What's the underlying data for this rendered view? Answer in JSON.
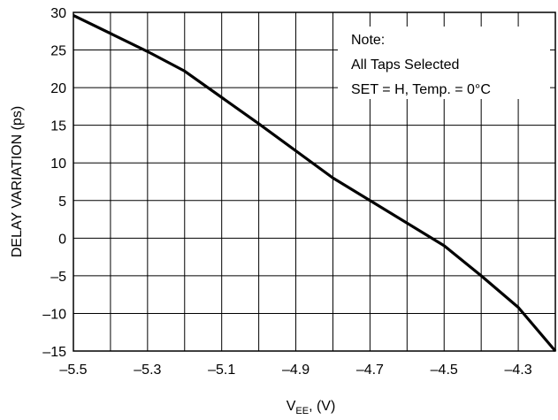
{
  "chart_data": {
    "type": "line",
    "title": "",
    "xlabel_main": "V",
    "xlabel_sub": "EE",
    "xlabel_rest": ", (V)",
    "ylabel": "DELAY VARIATION  (ps)",
    "xlim": [
      -5.5,
      -4.2
    ],
    "ylim": [
      -15,
      30
    ],
    "x_tick_labels": [
      {
        "x": -5.5,
        "label": "–5.5"
      },
      {
        "x": -5.3,
        "label": "–5.3"
      },
      {
        "x": -5.1,
        "label": "–5.1"
      },
      {
        "x": -4.9,
        "label": "–4.9"
      },
      {
        "x": -4.7,
        "label": "–4.7"
      },
      {
        "x": -4.5,
        "label": "–4.5"
      },
      {
        "x": -4.3,
        "label": "–4.3"
      }
    ],
    "x_grid": [
      -5.5,
      -5.4,
      -5.3,
      -5.2,
      -5.1,
      -5.0,
      -4.9,
      -4.8,
      -4.7,
      -4.6,
      -4.5,
      -4.4,
      -4.3,
      -4.2
    ],
    "y_ticks": [
      {
        "y": 30,
        "label": "30"
      },
      {
        "y": 25,
        "label": "25"
      },
      {
        "y": 20,
        "label": "20"
      },
      {
        "y": 15,
        "label": "15"
      },
      {
        "y": 10,
        "label": "10"
      },
      {
        "y": 5,
        "label": "5"
      },
      {
        "y": 0,
        "label": "0"
      },
      {
        "y": -5,
        "label": "–5"
      },
      {
        "y": -10,
        "label": "–10"
      },
      {
        "y": -15,
        "label": "–15"
      }
    ],
    "grid": true,
    "series": [
      {
        "x": [
          -5.5,
          -5.3,
          -5.2,
          -5.0,
          -4.8,
          -4.7,
          -4.5,
          -4.4,
          -4.3,
          -4.2
        ],
        "y": [
          29.6,
          24.8,
          22.2,
          15.2,
          8.0,
          5.0,
          -1.0,
          -5.0,
          -9.2,
          -15.0
        ]
      }
    ],
    "note": {
      "lines": [
        "Note:",
        "All Taps Selected",
        "SET = H, Temp. = 0°C"
      ],
      "placement": "top-right"
    }
  },
  "colors": {
    "line": "#000000",
    "grid": "#000000",
    "background": "#ffffff"
  }
}
